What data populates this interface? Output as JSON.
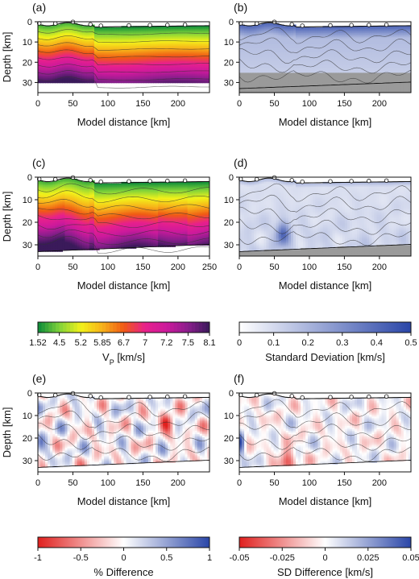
{
  "chart_data": [
    {
      "panel": "(a)",
      "type": "heatmap",
      "xlabel": "Model distance [km]",
      "ylabel": "Depth [km]",
      "xlim": [
        0,
        245
      ],
      "ylim": [
        0,
        35
      ],
      "y_inverted": true,
      "xticks": [
        "0",
        "50",
        "100",
        "150",
        "200"
      ],
      "yticks": [
        "0",
        "10",
        "20",
        "30"
      ],
      "colorbar": "vp",
      "model_bottom_km": 30,
      "stations_x_km": [
        2,
        25,
        50,
        75,
        90,
        130,
        160,
        185,
        210
      ]
    },
    {
      "panel": "(b)",
      "type": "heatmap",
      "xlabel": "Model distance [km]",
      "ylabel": "",
      "xlim": [
        0,
        245
      ],
      "ylim": [
        0,
        35
      ],
      "y_inverted": true,
      "xticks": [
        "0",
        "50",
        "100",
        "150",
        "200"
      ],
      "yticks": [
        "0",
        "10",
        "20",
        "30"
      ],
      "colorbar": "sd",
      "masked_below_km": 25,
      "stations_x_km": [
        2,
        25,
        50,
        75,
        90,
        130,
        160,
        185,
        210
      ]
    },
    {
      "panel": "(c)",
      "type": "heatmap",
      "xlabel": "Model distance [km]",
      "ylabel": "Depth [km]",
      "xlim": [
        0,
        245
      ],
      "ylim": [
        0,
        35
      ],
      "y_inverted": true,
      "xticks": [
        "0",
        "50",
        "100",
        "150",
        "200",
        "250"
      ],
      "yticks": [
        "0",
        "10",
        "20",
        "30"
      ],
      "colorbar": "vp",
      "stations_x_km": [
        2,
        25,
        50,
        75,
        90,
        130,
        160,
        185,
        210
      ]
    },
    {
      "panel": "(d)",
      "type": "heatmap",
      "xlabel": "Model distance [km]",
      "ylabel": "",
      "xlim": [
        0,
        245
      ],
      "ylim": [
        0,
        35
      ],
      "y_inverted": true,
      "xticks": [
        "0",
        "50",
        "100",
        "150",
        "200"
      ],
      "yticks": [
        "0",
        "10",
        "20",
        "30"
      ],
      "colorbar": "sd",
      "stations_x_km": [
        2,
        25,
        50,
        75,
        90,
        130,
        160,
        185,
        210
      ]
    },
    {
      "panel": "(e)",
      "type": "heatmap",
      "xlabel": "Model distance [km]",
      "ylabel": "Depth [km]",
      "xlim": [
        0,
        245
      ],
      "ylim": [
        0,
        35
      ],
      "y_inverted": true,
      "xticks": [
        "0",
        "50",
        "100",
        "150",
        "200"
      ],
      "yticks": [
        "0",
        "10",
        "20",
        "30"
      ],
      "colorbar": "pct",
      "stations_x_km": [
        2,
        25,
        50,
        75,
        90,
        130,
        160,
        185,
        210
      ]
    },
    {
      "panel": "(f)",
      "type": "heatmap",
      "xlabel": "Model distance [km]",
      "ylabel": "",
      "xlim": [
        0,
        245
      ],
      "ylim": [
        0,
        35
      ],
      "y_inverted": true,
      "xticks": [
        "0",
        "50",
        "100",
        "150",
        "200"
      ],
      "yticks": [
        "0",
        "10",
        "20",
        "30"
      ],
      "colorbar": "sddiff",
      "stations_x_km": [
        2,
        25,
        50,
        75,
        90,
        130,
        160,
        185,
        210
      ]
    }
  ],
  "colorbars": {
    "vp": {
      "title": "V",
      "title_sub": "P",
      "title_unit": " [km/s]",
      "labels": [
        "1.52",
        "4.5",
        "5.2",
        "5.85",
        "6.7",
        "7",
        "7.2",
        "7.5",
        "8.1"
      ],
      "colors": [
        "#0a8a3a",
        "#7fd23a",
        "#f2f21a",
        "#f7b21a",
        "#f05a14",
        "#e8208c",
        "#cc1a9c",
        "#8a1e8c",
        "#3a1a5a"
      ]
    },
    "sd": {
      "title": "Standard Deviation [km/s]",
      "labels": [
        "0",
        "0.1",
        "0.2",
        "0.3",
        "0.4",
        "0.5"
      ],
      "colors": [
        "#ffffff",
        "#2a46a8"
      ]
    },
    "pct": {
      "title": "% Difference",
      "labels": [
        "-1",
        "-0.5",
        "0",
        "0.5",
        "1"
      ],
      "colors": [
        "#e0201e",
        "#ffffff",
        "#2a46a8"
      ]
    },
    "sddiff": {
      "title": "SD Difference [km/s]",
      "labels": [
        "-0.05",
        "-0.025",
        "0",
        "0.025",
        "0.05"
      ],
      "colors": [
        "#e0201e",
        "#ffffff",
        "#2a46a8"
      ]
    }
  }
}
